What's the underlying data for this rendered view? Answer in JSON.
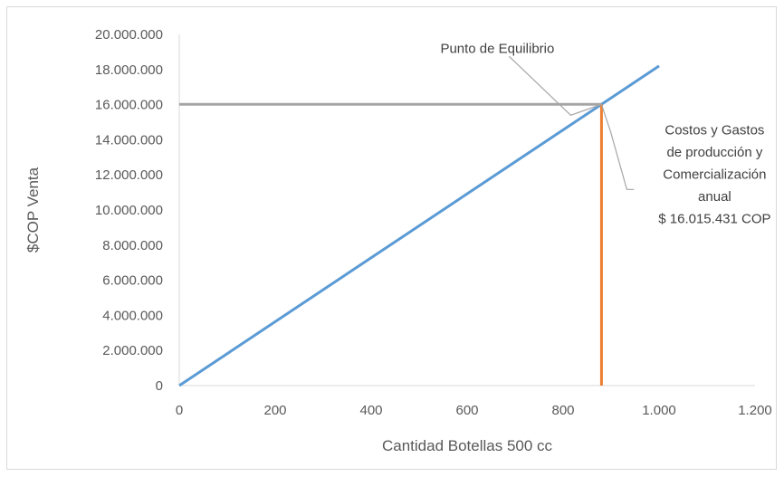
{
  "chart_data": {
    "type": "line",
    "title": "",
    "xlabel": "Cantidad Botellas 500 cc",
    "ylabel": "$COP Venta",
    "xlim": [
      0,
      1200
    ],
    "ylim": [
      0,
      20000000
    ],
    "x_ticks": [
      "0",
      "200",
      "400",
      "600",
      "800",
      "1.000",
      "1.200"
    ],
    "y_ticks": [
      "0",
      "2.000.000",
      "4.000.000",
      "6.000.000",
      "8.000.000",
      "10.000.000",
      "12.000.000",
      "14.000.000",
      "16.000.000",
      "18.000.000",
      "20.000.000"
    ],
    "x_tick_values": [
      0,
      200,
      400,
      600,
      800,
      1000,
      1200
    ],
    "y_tick_values": [
      0,
      2000000,
      4000000,
      6000000,
      8000000,
      10000000,
      12000000,
      14000000,
      16000000,
      18000000,
      20000000
    ],
    "grid": false,
    "series": [
      {
        "points": [
          [
            0,
            0
          ],
          [
            1000,
            18200000
          ]
        ],
        "color": "#5b9bd5"
      },
      {
        "points": [
          [
            0,
            16015431
          ],
          [
            880,
            16015431
          ]
        ],
        "color": "#a5a5a5"
      },
      {
        "points": [
          [
            880,
            0
          ],
          [
            880,
            16015431
          ]
        ],
        "color": "#ed7d31"
      }
    ],
    "break_even": {
      "x": 880,
      "y": 16015431
    },
    "annotations": {
      "punto": "Punto de Equilibrio",
      "costos": [
        "Costos y Gastos",
        "de producción y",
        "Comercialización",
        "anual",
        "$ 16.015.431 COP"
      ]
    }
  }
}
